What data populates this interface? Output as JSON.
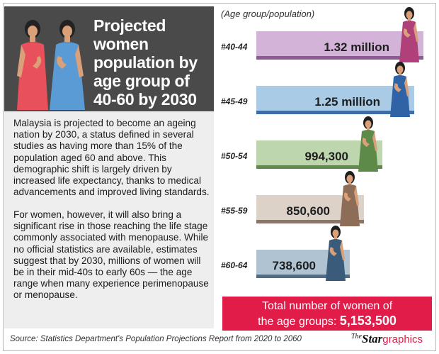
{
  "title": "Projected women population by age group of 40-60 by 2030",
  "title_lines": [
    "Projected",
    "women",
    "population by",
    "age group of",
    "40-60 by 2030"
  ],
  "body_text": {
    "paragraph1": "Malaysia is projected to become an ageing nation by 2030, a status defined in several studies as having more than 15% of the population aged 60 and above. This demographic shift is largely driven by increased life expectancy, thanks to medical advancements and improved living standards.",
    "paragraph2": "For women, however, it will also bring a significant rise in those reaching the life stage commonly associated with menopause. While no official statistics are available, estimates suggest that by 2030, millions of women will be in their mid-40s to early 60s — the age range when many experience perimenopause or menopause."
  },
  "colors": {
    "title_panel": "#4a4a4a",
    "text_panel": "#eeeeee",
    "total_box": "#e21c48",
    "figure_red": "#e8505b",
    "figure_blue": "#5b9bd5"
  },
  "chart_data": {
    "type": "bar",
    "orientation": "horizontal",
    "caption": "(Age group/population)",
    "categories": [
      "#40-44",
      "#45-49",
      "#50-54",
      "#55-59",
      "#60-64"
    ],
    "values": [
      1320000,
      1250000,
      994300,
      850600,
      738600
    ],
    "value_labels": [
      "1.32 million",
      "1.25 million",
      "994,300",
      "850,600",
      "738,600"
    ],
    "bar_colors": [
      "#d3b4d8",
      "#a9cbe6",
      "#bdd6ad",
      "#dcd2c8",
      "#afc3d2"
    ],
    "bar_stripe_colors": [
      "#8f5a93",
      "#3d6da4",
      "#5f8a4c",
      "#8a7668",
      "#4f6e86"
    ],
    "figure_dress_colors": [
      "#b0407a",
      "#2f63a6",
      "#5d8a48",
      "#8e6d58",
      "#3a5c7a"
    ]
  },
  "total": {
    "line1": "Total number of women of",
    "line2_prefix": "the age groups: ",
    "value": "5,153,500"
  },
  "source": "Source: Statistics Department's Population Projections Report from 2020 to 2060",
  "logo": {
    "the": "The",
    "star": "Star",
    "graphics": "graphics"
  }
}
